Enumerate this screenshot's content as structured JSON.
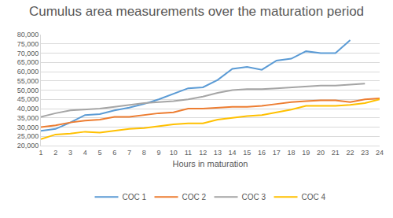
{
  "chart_data": {
    "type": "line",
    "title": "Cumulus area measurements over the maturation period",
    "x_label": "Hours in maturation",
    "categories": [
      "1",
      "2",
      "3",
      "4",
      "5",
      "6",
      "7",
      "8",
      "9",
      "10",
      "11",
      "12",
      "13",
      "14",
      "15",
      "16",
      "17",
      "18",
      "19",
      "20",
      "21",
      "22",
      "23",
      "24"
    ],
    "series": [
      {
        "name": "COC 1",
        "color": "#5b9bd5",
        "values": [
          28000,
          29000,
          32500,
          36500,
          37000,
          39000,
          40500,
          42500,
          45000,
          48000,
          51000,
          51500,
          55500,
          61500,
          62500,
          61000,
          66000,
          67000,
          71000,
          70000,
          70000,
          77000,
          null,
          null
        ]
      },
      {
        "name": "COC 2",
        "color": "#ed7d31",
        "values": [
          30000,
          31000,
          32500,
          33500,
          34000,
          35500,
          35500,
          36500,
          37500,
          38000,
          40000,
          40000,
          40500,
          41000,
          41000,
          41500,
          42500,
          43500,
          44000,
          44500,
          44500,
          43500,
          45000,
          45500
        ]
      },
      {
        "name": "COC 3",
        "color": "#a5a5a5",
        "values": [
          35500,
          37500,
          39000,
          39500,
          40000,
          41000,
          42000,
          43000,
          43500,
          44000,
          45000,
          46500,
          48500,
          50000,
          50500,
          50500,
          51000,
          51500,
          52000,
          52500,
          52500,
          53000,
          53500,
          null
        ]
      },
      {
        "name": "COC 4",
        "color": "#ffc000",
        "values": [
          23500,
          26000,
          26500,
          27500,
          27000,
          28000,
          29000,
          29500,
          30500,
          31500,
          32000,
          32000,
          34000,
          35000,
          36000,
          36500,
          38000,
          39500,
          41500,
          41500,
          41500,
          42000,
          43000,
          45000
        ]
      }
    ],
    "ylim": [
      20000,
      80000
    ],
    "yticks": [
      {
        "value": 20000,
        "label": "20,000"
      },
      {
        "value": 25000,
        "label": "25,000"
      },
      {
        "value": 30000,
        "label": "30,000"
      },
      {
        "value": 35000,
        "label": "35,000"
      },
      {
        "value": 40000,
        "label": "40,000"
      },
      {
        "value": 45000,
        "label": "45,000"
      },
      {
        "value": 50000,
        "label": "50,000"
      },
      {
        "value": 55000,
        "label": "55,000"
      },
      {
        "value": 60000,
        "label": "60,000"
      },
      {
        "value": 65000,
        "label": "65,000"
      },
      {
        "value": 70000,
        "label": "70,000"
      },
      {
        "value": 75000,
        "label": "75,000"
      },
      {
        "value": 80000,
        "label": "80,000"
      }
    ],
    "grid": true,
    "legend": "bottom"
  }
}
